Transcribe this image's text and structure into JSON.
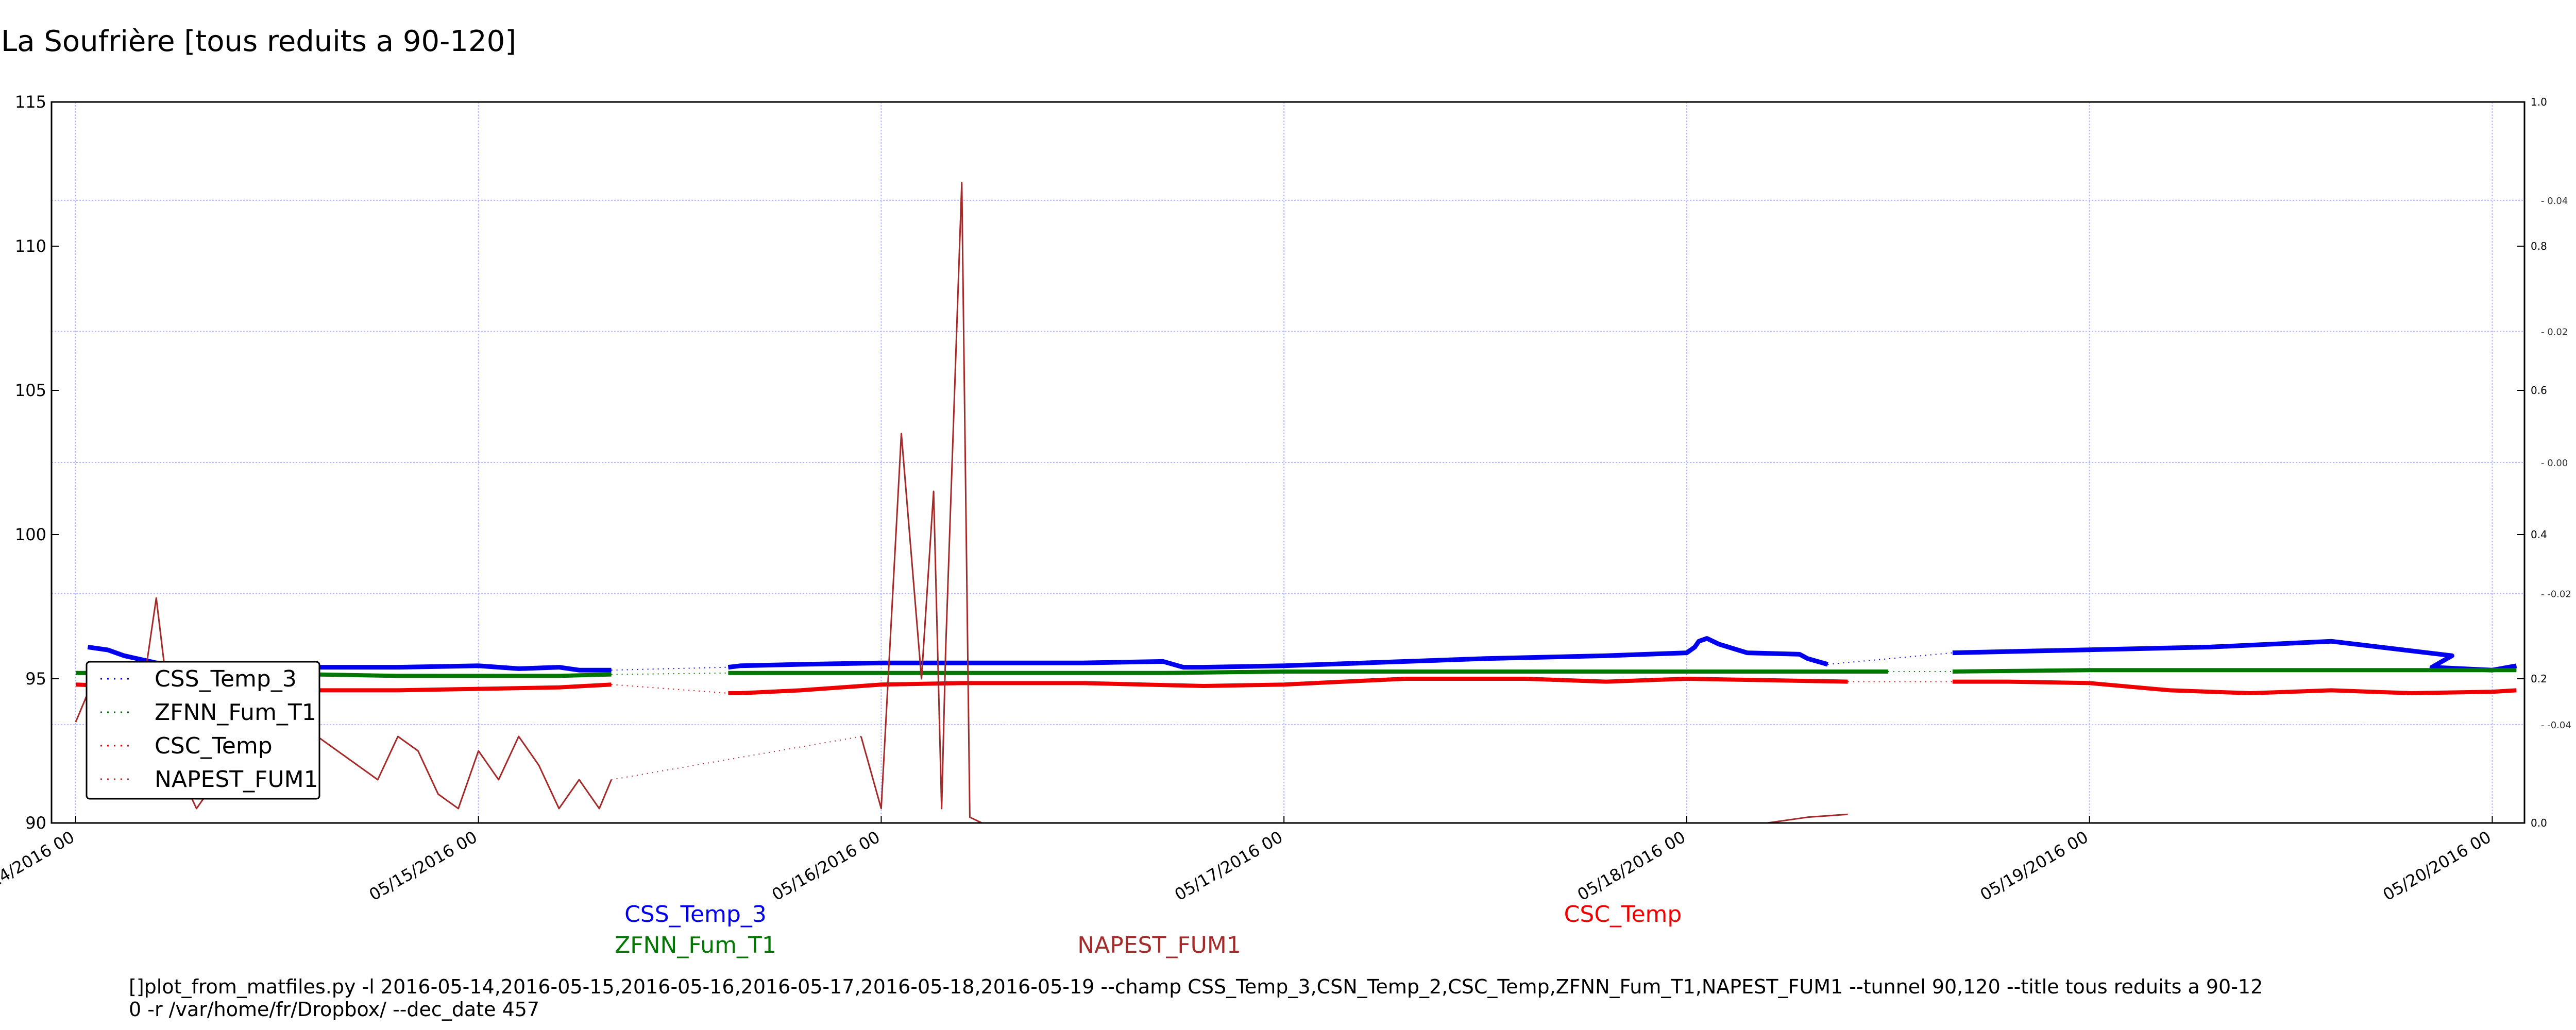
{
  "title": "La Soufrière [tous reduits a 90-120]",
  "command": {
    "line1": "[]plot_from_matfiles.py -l 2016-05-14,2016-05-15,2016-05-16,2016-05-17,2016-05-18,2016-05-19 --champ CSS_Temp_3,CSN_Temp_2,CSC_Temp,ZFNN_Fum_T1,NAPEST_FUM1 --tunnel 90,120 --title tous reduits a 90-12",
    "line2": "0 -r /var/home/fr/Dropbox/ --dec_date 457"
  },
  "bottom_labels": {
    "l1": "CSS_Temp_3",
    "l2": "ZFNN_Fum_T1",
    "l3": "NAPEST_FUM1",
    "l4": "CSC_Temp"
  },
  "colors": {
    "CSS_Temp_3": "#0000ee",
    "CSC_Temp": "#ee0000",
    "ZFNN_Fum_T1": "#007700",
    "NAPEST_FUM1": "#a52a2a",
    "grid": "#b8b8ff"
  },
  "chart_data": {
    "type": "line",
    "xlabel": "",
    "ylabel": "",
    "grid": true,
    "legend_position": "lower-left",
    "x_ticks": [
      "05/14/2016 00",
      "05/15/2016 00",
      "05/16/2016 00",
      "05/17/2016 00",
      "05/18/2016 00",
      "05/19/2016 00",
      "05/20/2016 00"
    ],
    "xlim": [
      -0.06,
      6.08
    ],
    "ylim": [
      90,
      115
    ],
    "y_ticks": [
      90,
      95,
      100,
      105,
      110,
      115
    ],
    "right_axis_1": {
      "ticks": [
        "0.0",
        "0.2",
        "0.4",
        "0.6",
        "0.8",
        "1.0"
      ],
      "ylim": [
        0,
        1
      ]
    },
    "right_axis_2": {
      "ticks": [
        "-0.04",
        "-0.02",
        "0.00",
        "0.02",
        "0.04"
      ],
      "ylim": [
        -0.055,
        0.055
      ]
    },
    "series": [
      {
        "name": "CSS_Temp_3",
        "x": [
          0.03,
          0.08,
          0.12,
          0.2,
          0.4,
          0.6,
          0.8,
          1.0,
          1.1,
          1.2,
          1.25,
          1.33,
          1.35,
          1.62,
          1.65,
          1.8,
          2.0,
          2.2,
          2.5,
          2.7,
          2.75,
          2.8,
          3.0,
          3.2,
          3.5,
          3.8,
          4.0,
          4.02,
          4.03,
          4.05,
          4.08,
          4.15,
          4.28,
          4.3,
          4.35,
          4.56,
          4.66,
          5.3,
          5.6,
          5.9,
          5.85,
          6.0,
          6.06
        ],
        "y": [
          96.1,
          96.0,
          95.8,
          95.55,
          95.45,
          95.4,
          95.4,
          95.45,
          95.35,
          95.4,
          95.3,
          95.3,
          null,
          95.4,
          95.45,
          95.5,
          95.55,
          95.55,
          95.55,
          95.6,
          95.4,
          95.4,
          95.45,
          95.55,
          95.7,
          95.8,
          95.9,
          96.1,
          96.3,
          96.4,
          96.2,
          95.9,
          95.85,
          95.7,
          95.5,
          null,
          95.9,
          96.1,
          96.3,
          95.8,
          95.4,
          95.3,
          95.45
        ]
      },
      {
        "name": "ZFNN_Fum_T1",
        "x": [
          0.0,
          0.2,
          0.4,
          0.6,
          0.8,
          1.0,
          1.2,
          1.33,
          1.35,
          1.62,
          1.65,
          1.8,
          2.0,
          2.2,
          2.5,
          2.7,
          3.0,
          3.5,
          4.0,
          4.5,
          4.56,
          4.66,
          5.0,
          5.3,
          5.5,
          5.8,
          6.06
        ],
        "y": [
          95.2,
          95.2,
          95.15,
          95.15,
          95.1,
          95.1,
          95.1,
          95.15,
          null,
          95.2,
          95.2,
          95.2,
          95.2,
          95.2,
          95.2,
          95.2,
          95.25,
          95.25,
          95.25,
          95.25,
          null,
          95.25,
          95.3,
          95.3,
          95.3,
          95.3,
          95.3
        ]
      },
      {
        "name": "CSC_Temp",
        "x": [
          0.0,
          0.1,
          0.2,
          0.4,
          0.6,
          0.8,
          1.0,
          1.2,
          1.33,
          1.35,
          1.62,
          1.65,
          1.8,
          2.0,
          2.2,
          2.5,
          2.8,
          3.0,
          3.3,
          3.6,
          3.8,
          4.0,
          4.2,
          4.4,
          4.56,
          4.66,
          4.8,
          5.0,
          5.2,
          5.4,
          5.6,
          5.8,
          6.0,
          6.06
        ],
        "y": [
          94.8,
          94.75,
          94.7,
          94.65,
          94.6,
          94.6,
          94.65,
          94.7,
          94.8,
          null,
          94.5,
          94.5,
          94.6,
          94.8,
          94.85,
          94.85,
          94.75,
          94.8,
          95.0,
          95.0,
          94.9,
          95.0,
          94.95,
          94.9,
          null,
          94.9,
          94.9,
          94.85,
          94.6,
          94.5,
          94.6,
          94.5,
          94.55,
          94.6
        ]
      },
      {
        "name": "NAPEST_FUM1",
        "x": [
          0.0,
          0.03,
          0.06,
          0.1,
          0.15,
          0.2,
          0.25,
          0.3,
          0.35,
          0.4,
          0.45,
          0.5,
          0.55,
          0.6,
          0.65,
          0.7,
          0.75,
          0.8,
          0.85,
          0.9,
          0.95,
          1.0,
          1.05,
          1.1,
          1.15,
          1.2,
          1.25,
          1.3,
          1.33,
          1.35,
          1.95,
          2.0,
          2.05,
          2.1,
          2.13,
          2.15,
          2.16,
          2.2,
          2.22,
          2.25,
          2.3,
          2.4,
          2.8,
          3.5,
          4.2,
          4.3,
          4.4
        ],
        "y": [
          93.5,
          94.5,
          92.5,
          91.0,
          93.0,
          97.8,
          92.0,
          90.5,
          91.5,
          93.0,
          94.5,
          93.5,
          95.5,
          93.0,
          92.5,
          92.0,
          91.5,
          93.0,
          92.5,
          91.0,
          90.5,
          92.5,
          91.5,
          93.0,
          92.0,
          90.5,
          91.5,
          90.5,
          91.5,
          null,
          93.0,
          90.5,
          103.5,
          95.0,
          101.5,
          90.5,
          96.0,
          112.2,
          90.2,
          90.0,
          90.0,
          90.0,
          90.0,
          90.0,
          90.0,
          90.2,
          90.3
        ]
      }
    ]
  }
}
